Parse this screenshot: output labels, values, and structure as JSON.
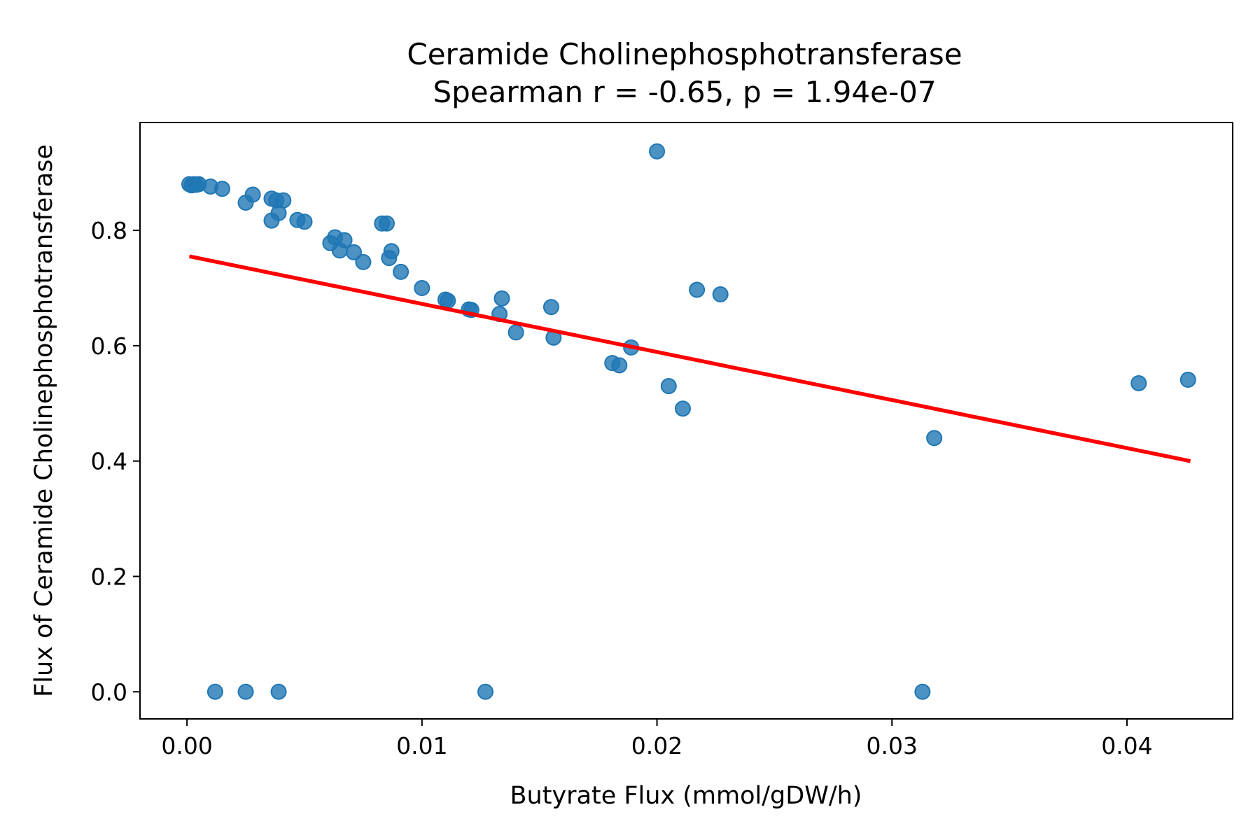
{
  "chart_data": {
    "type": "scatter",
    "title": "Ceramide Cholinephosphotransferase",
    "subtitle": "Spearman r = -0.65, p = 1.94e-07",
    "xlabel": "Butyrate Flux (mmol/gDW/h)",
    "ylabel": "Flux of Ceramide Cholinephosphotransferase",
    "xlim": [
      -0.002,
      0.0445
    ],
    "ylim": [
      -0.047,
      0.987
    ],
    "xticks": [
      0.0,
      0.01,
      0.02,
      0.03,
      0.04
    ],
    "xtick_labels": [
      "0.00",
      "0.01",
      "0.02",
      "0.03",
      "0.04"
    ],
    "yticks": [
      0.0,
      0.2,
      0.4,
      0.6,
      0.8
    ],
    "ytick_labels": [
      "0.0",
      "0.2",
      "0.4",
      "0.6",
      "0.8"
    ],
    "grid": false,
    "point_color": "#1f77b4",
    "trend_line": {
      "color": "#ff0000",
      "points": [
        [
          0.0001,
          0.755
        ],
        [
          0.0427,
          0.4
        ]
      ]
    },
    "points": [
      [
        0.0001,
        0.88
      ],
      [
        0.0002,
        0.878
      ],
      [
        0.0003,
        0.88
      ],
      [
        0.0004,
        0.879
      ],
      [
        0.0005,
        0.88
      ],
      [
        0.001,
        0.876
      ],
      [
        0.0015,
        0.872
      ],
      [
        0.0025,
        0.848
      ],
      [
        0.0028,
        0.862
      ],
      [
        0.0036,
        0.855
      ],
      [
        0.0038,
        0.852
      ],
      [
        0.0041,
        0.852
      ],
      [
        0.0039,
        0.83
      ],
      [
        0.0036,
        0.817
      ],
      [
        0.0047,
        0.818
      ],
      [
        0.005,
        0.815
      ],
      [
        0.0061,
        0.778
      ],
      [
        0.0063,
        0.788
      ],
      [
        0.0065,
        0.765
      ],
      [
        0.0067,
        0.783
      ],
      [
        0.0071,
        0.762
      ],
      [
        0.0075,
        0.745
      ],
      [
        0.0083,
        0.812
      ],
      [
        0.0085,
        0.812
      ],
      [
        0.0086,
        0.752
      ],
      [
        0.0087,
        0.764
      ],
      [
        0.0091,
        0.728
      ],
      [
        0.01,
        0.7
      ],
      [
        0.011,
        0.68
      ],
      [
        0.0111,
        0.678
      ],
      [
        0.012,
        0.663
      ],
      [
        0.0121,
        0.662
      ],
      [
        0.0133,
        0.655
      ],
      [
        0.0134,
        0.682
      ],
      [
        0.014,
        0.623
      ],
      [
        0.0155,
        0.667
      ],
      [
        0.0156,
        0.614
      ],
      [
        0.0181,
        0.57
      ],
      [
        0.0184,
        0.566
      ],
      [
        0.0189,
        0.597
      ],
      [
        0.02,
        0.937
      ],
      [
        0.0205,
        0.53
      ],
      [
        0.0211,
        0.491
      ],
      [
        0.0217,
        0.697
      ],
      [
        0.0227,
        0.689
      ],
      [
        0.0318,
        0.44
      ],
      [
        0.0405,
        0.535
      ],
      [
        0.0426,
        0.541
      ],
      [
        0.0012,
        0.0
      ],
      [
        0.0025,
        0.0
      ],
      [
        0.0039,
        0.0
      ],
      [
        0.0127,
        0.0
      ],
      [
        0.0313,
        0.0
      ]
    ]
  }
}
